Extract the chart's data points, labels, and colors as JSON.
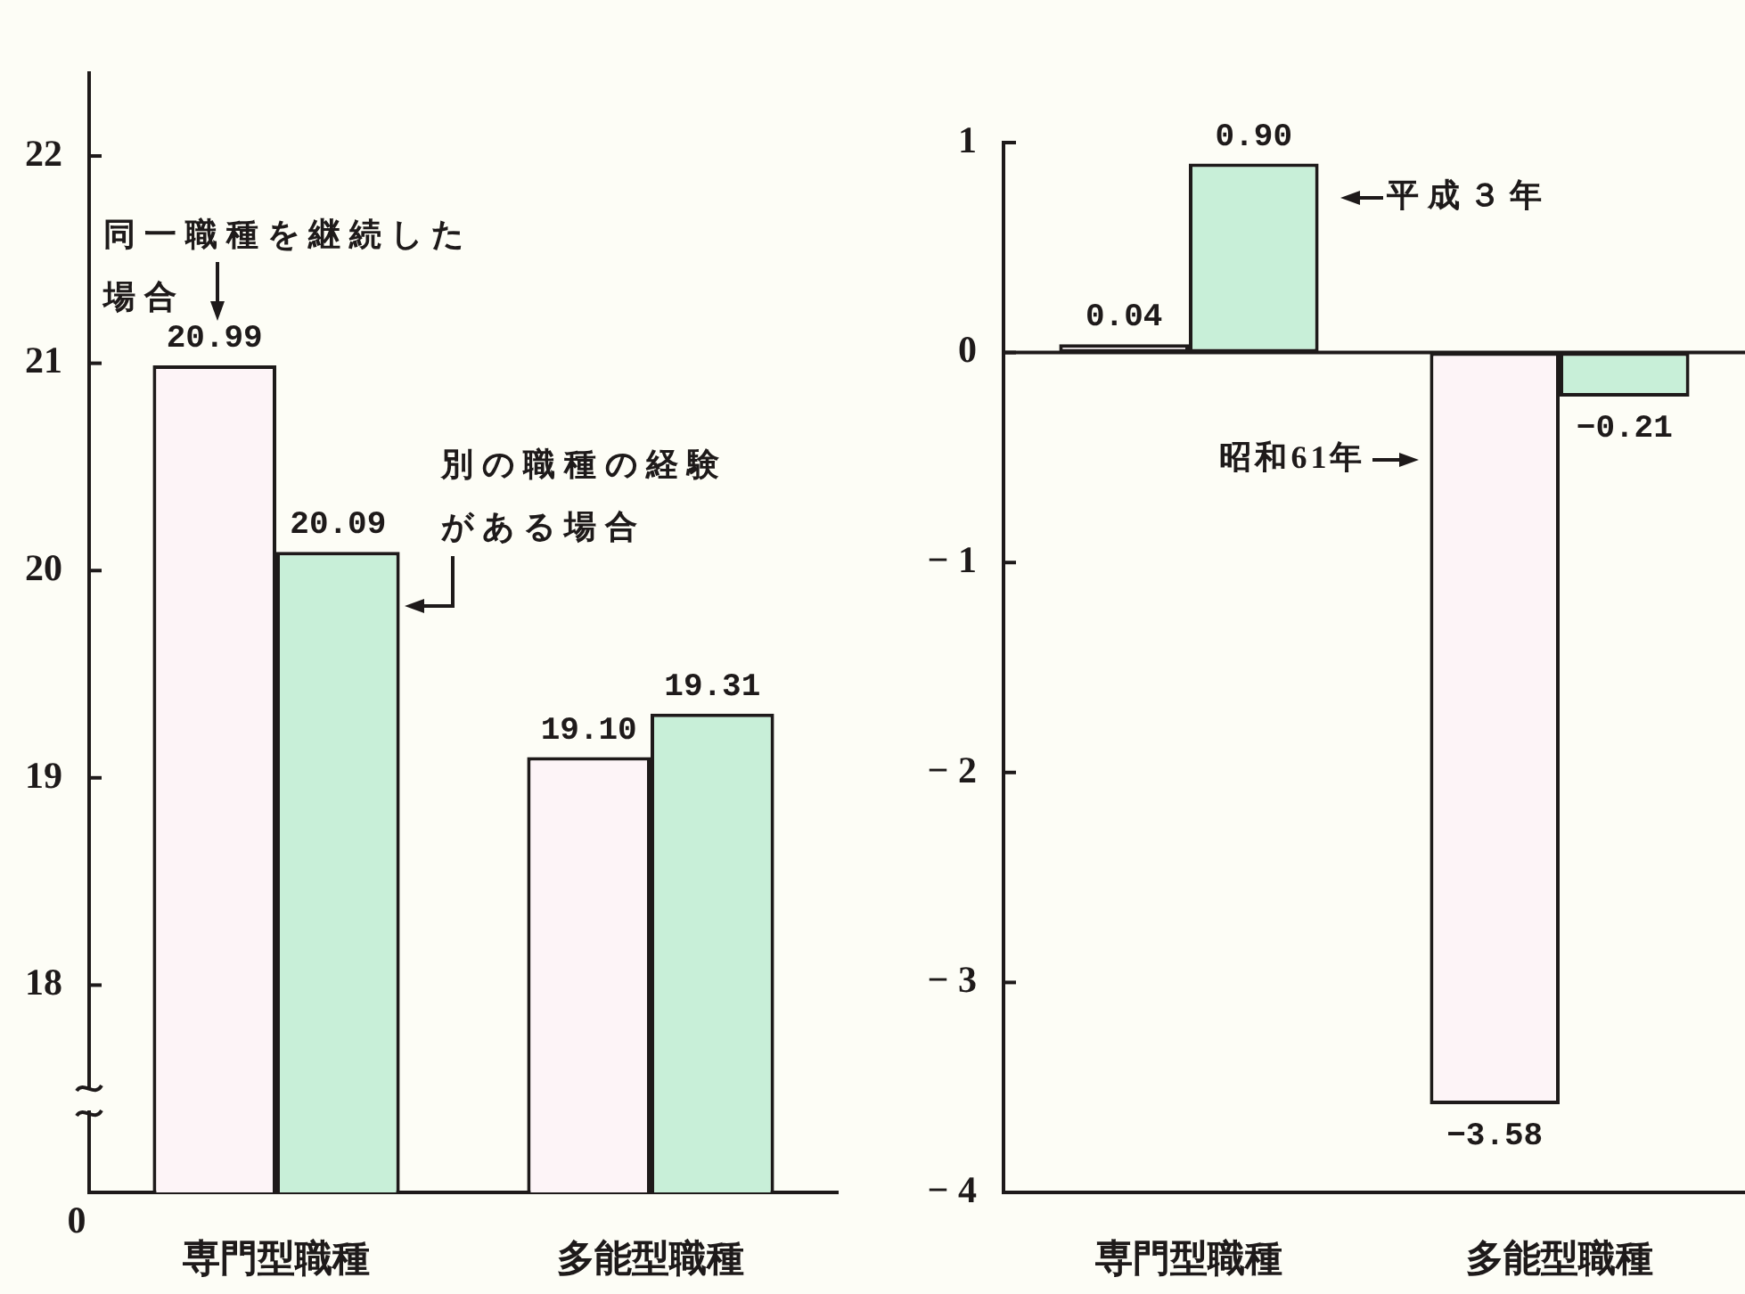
{
  "chart_data": [
    {
      "type": "bar",
      "categories": [
        "専門型職種",
        "多能型職種"
      ],
      "series": [
        {
          "name": "同一職種を継続した場合",
          "color": "#fdf4f7",
          "values": [
            20.99,
            19.1
          ],
          "value_labels": [
            "20.99",
            "19.10"
          ]
        },
        {
          "name": "別の職種の経験がある場合",
          "color": "#c8efd8",
          "values": [
            20.09,
            19.31
          ],
          "value_labels": [
            "20.09",
            "19.31"
          ]
        }
      ],
      "ylim": [
        17,
        22.4
      ],
      "yticks": [
        18,
        19,
        20,
        21,
        22
      ],
      "annotations": [
        "0"
      ],
      "legend": false,
      "grid": false
    },
    {
      "type": "bar",
      "categories": [
        "専門型職種",
        "多能型職種"
      ],
      "series": [
        {
          "name": "昭和61年",
          "color": "#fdf4f7",
          "values": [
            0.04,
            -3.58
          ],
          "value_labels": [
            "0.04",
            "−3.58"
          ]
        },
        {
          "name": "平成３年",
          "color": "#c8efd8",
          "values": [
            0.9,
            -0.21
          ],
          "value_labels": [
            "0.90",
            "−0.21"
          ]
        }
      ],
      "ylim": [
        -4,
        1
      ],
      "yticks": [
        {
          "value": -4,
          "label": "− 4"
        },
        {
          "value": -3,
          "label": "− 3"
        },
        {
          "value": -2,
          "label": "− 2"
        },
        {
          "value": -1,
          "label": "− 1"
        },
        0,
        1
      ],
      "ref_lines": [
        {
          "axis": "y",
          "value": 0
        }
      ],
      "legend": false,
      "grid": false
    }
  ]
}
